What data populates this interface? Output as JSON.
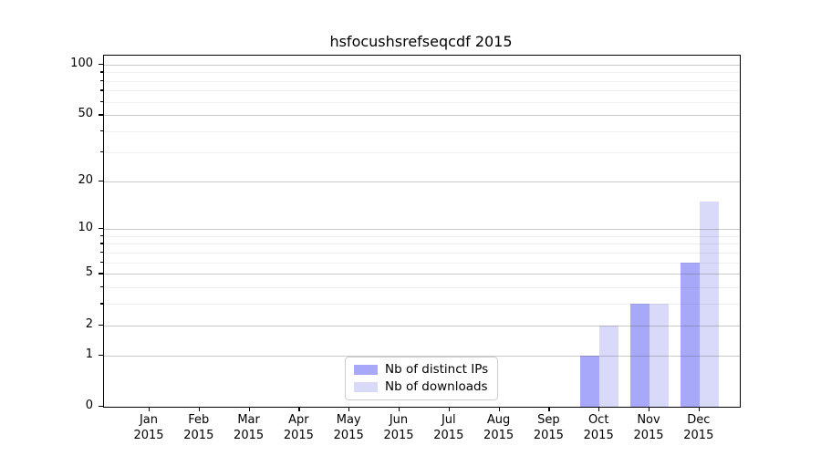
{
  "title": "hsfocushsrefseqcdf 2015",
  "legend": {
    "items": [
      {
        "label": "Nb of distinct IPs",
        "color": "#a8a8f8"
      },
      {
        "label": "Nb of downloads",
        "color": "#d9d9f9"
      }
    ]
  },
  "chart_data": {
    "type": "bar",
    "title": "hsfocushsrefseqcdf 2015",
    "categories": [
      "Jan 2015",
      "Feb 2015",
      "Mar 2015",
      "Apr 2015",
      "May 2015",
      "Jun 2015",
      "Jul 2015",
      "Aug 2015",
      "Sep 2015",
      "Oct 2015",
      "Nov 2015",
      "Dec 2015"
    ],
    "series": [
      {
        "name": "Nb of distinct IPs",
        "color": "#a8a8f8",
        "values": [
          0,
          0,
          0,
          0,
          0,
          0,
          0,
          0,
          0,
          1,
          3,
          6
        ]
      },
      {
        "name": "Nb of downloads",
        "color": "#d9d9f9",
        "values": [
          0,
          0,
          0,
          0,
          0,
          0,
          0,
          0,
          0,
          2,
          3,
          15
        ]
      }
    ],
    "yscale": "log1p",
    "ylim": [
      0,
      113
    ],
    "y_major_ticks": [
      0,
      1,
      2,
      5,
      10,
      20,
      50,
      100
    ],
    "y_minor_ticks": [
      3,
      4,
      6,
      7,
      8,
      9,
      30,
      40,
      60,
      70,
      80,
      90
    ],
    "xlabel": "",
    "ylabel": "",
    "grid": true,
    "legend_position": "lower center"
  }
}
